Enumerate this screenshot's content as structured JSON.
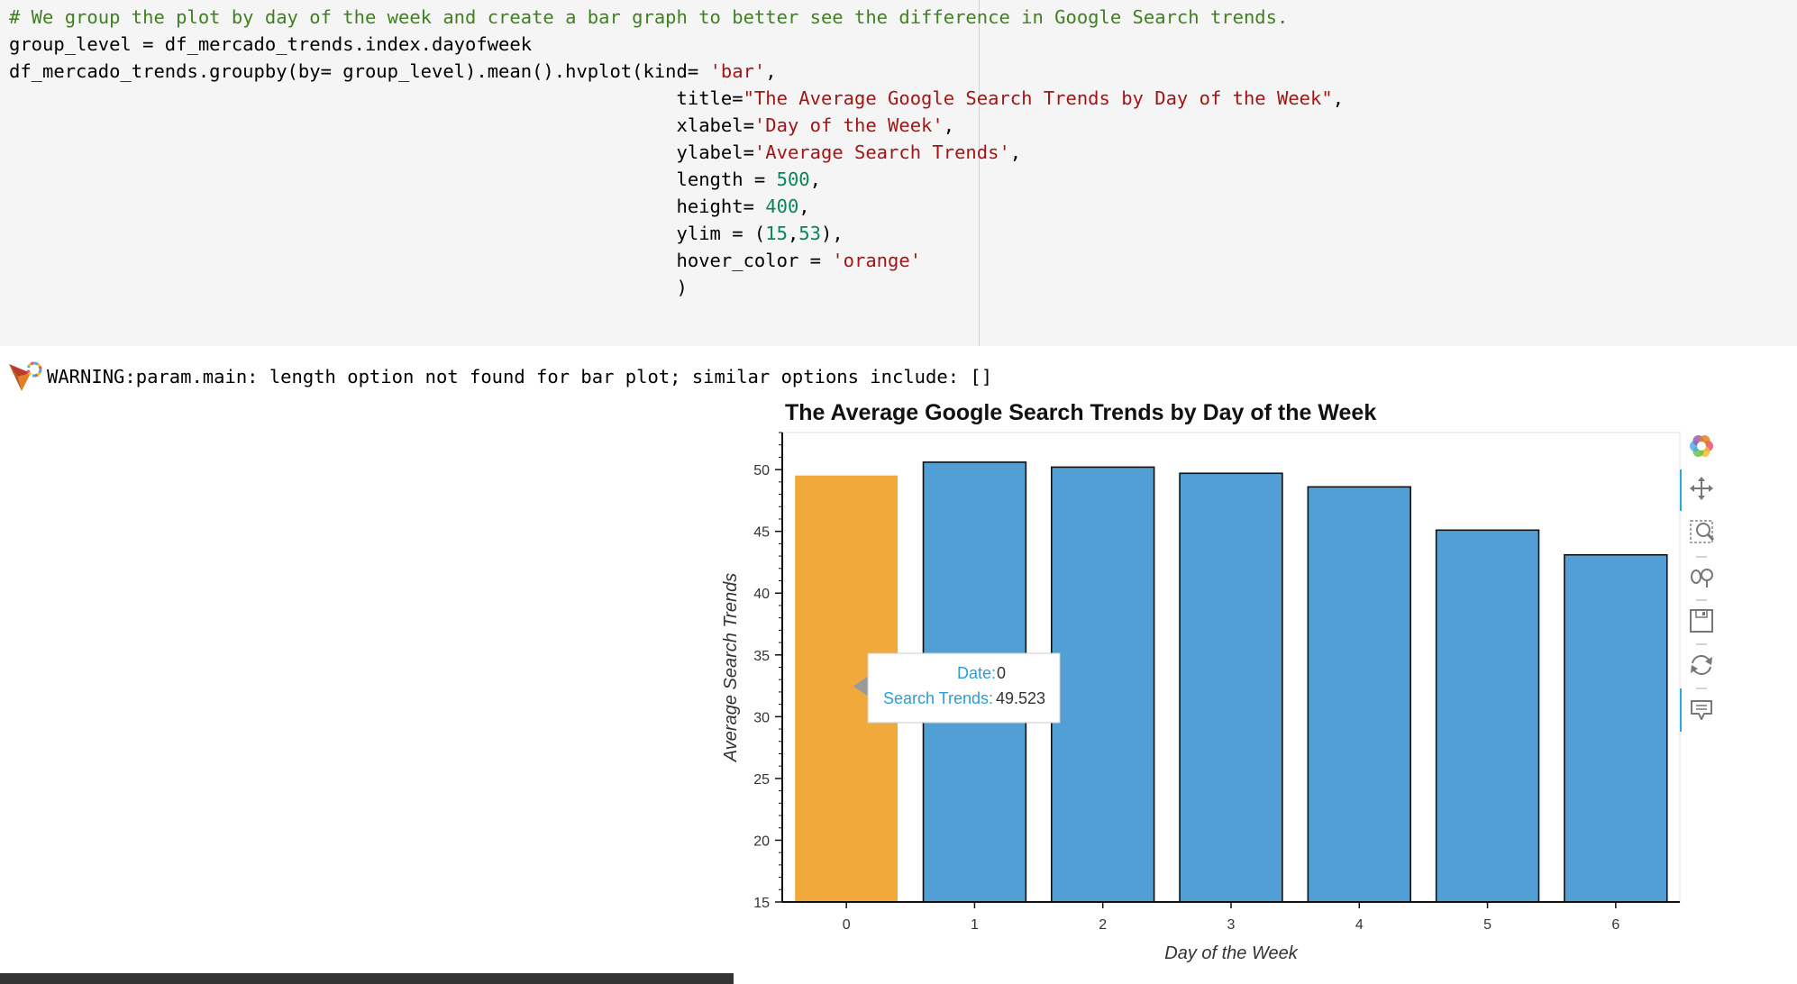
{
  "code_cell": {
    "lines": [
      [
        {
          "t": "# We group the plot by day of the week and create a bar graph to better see the difference in Google Search trends.",
          "c": "cm"
        }
      ],
      [
        {
          "t": "group_level = df_mercado_trends.index.dayofweek",
          "c": ""
        }
      ],
      [
        {
          "t": "df_mercado_trends.groupby(by= group_level).mean().hvplot(kind= ",
          "c": ""
        },
        {
          "t": "'bar'",
          "c": "st"
        },
        {
          "t": ",",
          "c": ""
        }
      ],
      [
        {
          "t": "                                                            title=",
          "c": ""
        },
        {
          "t": "\"The Average Google Search Trends by Day of the Week\"",
          "c": "st"
        },
        {
          "t": ",",
          "c": ""
        }
      ],
      [
        {
          "t": "                                                            xlabel=",
          "c": ""
        },
        {
          "t": "'Day of the Week'",
          "c": "st"
        },
        {
          "t": ",",
          "c": ""
        }
      ],
      [
        {
          "t": "                                                            ylabel=",
          "c": ""
        },
        {
          "t": "'Average Search Trends'",
          "c": "st"
        },
        {
          "t": ",",
          "c": ""
        }
      ],
      [
        {
          "t": "                                                            length = ",
          "c": ""
        },
        {
          "t": "500",
          "c": "nu"
        },
        {
          "t": ",",
          "c": ""
        }
      ],
      [
        {
          "t": "                                                            height= ",
          "c": ""
        },
        {
          "t": "400",
          "c": "nu"
        },
        {
          "t": ",",
          "c": ""
        }
      ],
      [
        {
          "t": "                                                            ylim = (",
          "c": ""
        },
        {
          "t": "15",
          "c": "nu"
        },
        {
          "t": ",",
          "c": ""
        },
        {
          "t": "53",
          "c": "nu"
        },
        {
          "t": "),",
          "c": ""
        }
      ],
      [
        {
          "t": "                                                            hover_color = ",
          "c": ""
        },
        {
          "t": "'orange'",
          "c": "st"
        }
      ],
      [
        {
          "t": "                                                            )",
          "c": ""
        }
      ]
    ]
  },
  "output": {
    "warning": "WARNING:param.main: length option not found for bar plot; similar options include: []"
  },
  "chart_data": {
    "type": "bar",
    "title": "The Average Google Search Trends by Day of the Week",
    "xlabel": "Day of the Week",
    "ylabel": "Average Search Trends",
    "categories": [
      "0",
      "1",
      "2",
      "3",
      "4",
      "5",
      "6"
    ],
    "values": [
      49.523,
      50.6,
      50.2,
      49.7,
      48.6,
      45.1,
      43.1
    ],
    "ylim": [
      15,
      53
    ],
    "yticks": [
      15,
      20,
      25,
      30,
      35,
      40,
      45,
      50
    ],
    "bar_color": "#519fd4",
    "hover_color": "#f2a93b",
    "hovered_index": 0,
    "tooltip": {
      "date_label": "Date:",
      "date_value": "0",
      "trend_label": "Search Trends:",
      "trend_value": "49.523"
    },
    "toolbar": [
      "bokeh-logo-icon",
      "pan-icon",
      "box-zoom-icon",
      "wheel-zoom-icon",
      "save-icon",
      "reset-icon",
      "hover-icon"
    ]
  }
}
